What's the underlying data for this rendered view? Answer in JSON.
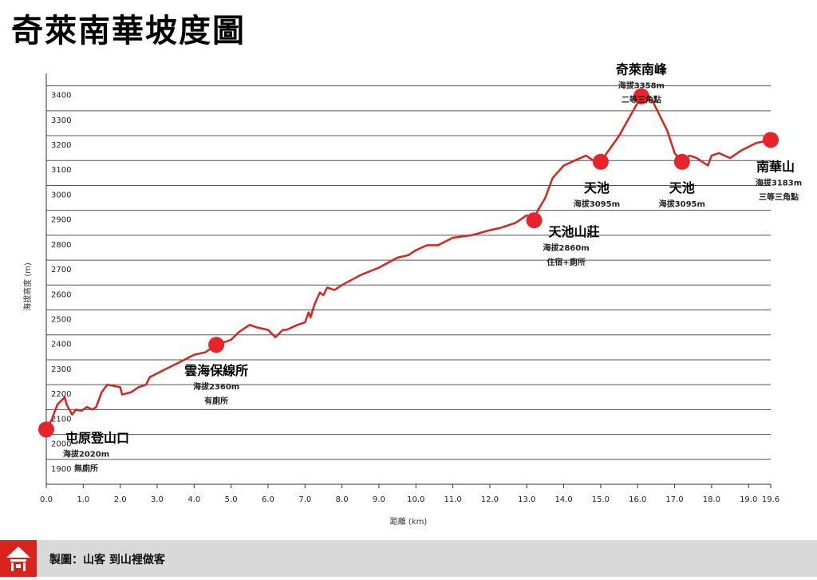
{
  "title": "奇萊南華坡度圖",
  "footer": {
    "credit": "製圖：山客  到山裡做客",
    "logo_icon": "mountain-house-icon"
  },
  "colors": {
    "line": "#d9241e",
    "marker": "#e8232b",
    "footer_bg": "#d9d9d9"
  },
  "chart_data": {
    "type": "line",
    "title": "奇萊南華坡度圖",
    "xlabel": "距離 (km)",
    "ylabel": "海拔高度 (m)",
    "xlim": [
      0,
      19.6
    ],
    "ylim": [
      1800,
      3450
    ],
    "grid": true,
    "y_ticks": [
      "1900",
      "2000",
      "2100",
      "2200",
      "2300",
      "2400",
      "2500",
      "2600",
      "2700",
      "2800",
      "2900",
      "3000",
      "3100",
      "3200",
      "3300",
      "3400"
    ],
    "x_ticks": [
      "0.0",
      "1.0",
      "2.0",
      "3.0",
      "4.0",
      "5.0",
      "6.0",
      "7.0",
      "8.0",
      "9.0",
      "10.0",
      "11.0",
      "12.0",
      "13.0",
      "14.0",
      "15.0",
      "16.0",
      "17.0",
      "18.0",
      "19.0",
      "19.6"
    ],
    "series": [
      {
        "name": "elevation",
        "x": [
          0,
          0.15,
          0.3,
          0.5,
          0.55,
          0.7,
          0.8,
          0.95,
          1.1,
          1.25,
          1.35,
          1.5,
          1.65,
          2.0,
          2.05,
          2.3,
          2.5,
          2.7,
          2.8,
          3.2,
          3.6,
          4.0,
          4.3,
          4.6,
          5.0,
          5.2,
          5.5,
          5.7,
          6.0,
          6.2,
          6.4,
          6.5,
          6.8,
          7.0,
          7.1,
          7.15,
          7.25,
          7.4,
          7.5,
          7.6,
          7.8,
          8.0,
          8.5,
          9.0,
          9.5,
          9.8,
          10.0,
          10.3,
          10.6,
          11.0,
          11.5,
          12.0,
          12.3,
          12.7,
          13.0,
          13.2,
          13.3,
          13.5,
          13.7,
          14.0,
          14.3,
          14.6,
          14.8,
          15.0,
          15.5,
          15.8,
          16.1,
          16.4,
          16.8,
          17.0,
          17.2,
          17.4,
          17.6,
          17.9,
          18.0,
          18.2,
          18.5,
          18.8,
          19.2,
          19.6
        ],
        "y": [
          2020,
          2060,
          2120,
          2150,
          2120,
          2080,
          2100,
          2095,
          2110,
          2100,
          2110,
          2170,
          2200,
          2190,
          2160,
          2170,
          2190,
          2200,
          2230,
          2260,
          2290,
          2320,
          2330,
          2360,
          2380,
          2410,
          2440,
          2430,
          2420,
          2390,
          2420,
          2420,
          2440,
          2450,
          2490,
          2470,
          2520,
          2570,
          2560,
          2590,
          2580,
          2600,
          2640,
          2670,
          2710,
          2720,
          2740,
          2760,
          2760,
          2790,
          2800,
          2820,
          2830,
          2850,
          2880,
          2860,
          2900,
          2950,
          3030,
          3080,
          3100,
          3120,
          3100,
          3095,
          3200,
          3280,
          3358,
          3340,
          3220,
          3130,
          3095,
          3120,
          3110,
          3080,
          3120,
          3130,
          3110,
          3140,
          3170,
          3183
        ]
      }
    ],
    "waypoints": [
      {
        "name": "屯原登山口",
        "km": 0.0,
        "elev": 2020,
        "lines": [
          "海拔2020m",
          "無廁所"
        ]
      },
      {
        "name": "雲海保線所",
        "km": 4.6,
        "elev": 2360,
        "lines": [
          "海拔2360m",
          "有廁所"
        ]
      },
      {
        "name": "天池山莊",
        "km": 13.2,
        "elev": 2860,
        "lines": [
          "海拔2860m",
          "住宿+廁所"
        ]
      },
      {
        "name": "天池",
        "km": 15.0,
        "elev": 3095,
        "lines": [
          "海拔3095m"
        ]
      },
      {
        "name": "奇萊南峰",
        "km": 16.1,
        "elev": 3358,
        "lines": [
          "海拔3358m",
          "二等三角點"
        ]
      },
      {
        "name": "天池",
        "km": 17.2,
        "elev": 3095,
        "lines": [
          "海拔3095m"
        ]
      },
      {
        "name": "南華山",
        "km": 19.6,
        "elev": 3183,
        "lines": [
          "海拔3183m",
          "三等三角點"
        ]
      }
    ]
  }
}
